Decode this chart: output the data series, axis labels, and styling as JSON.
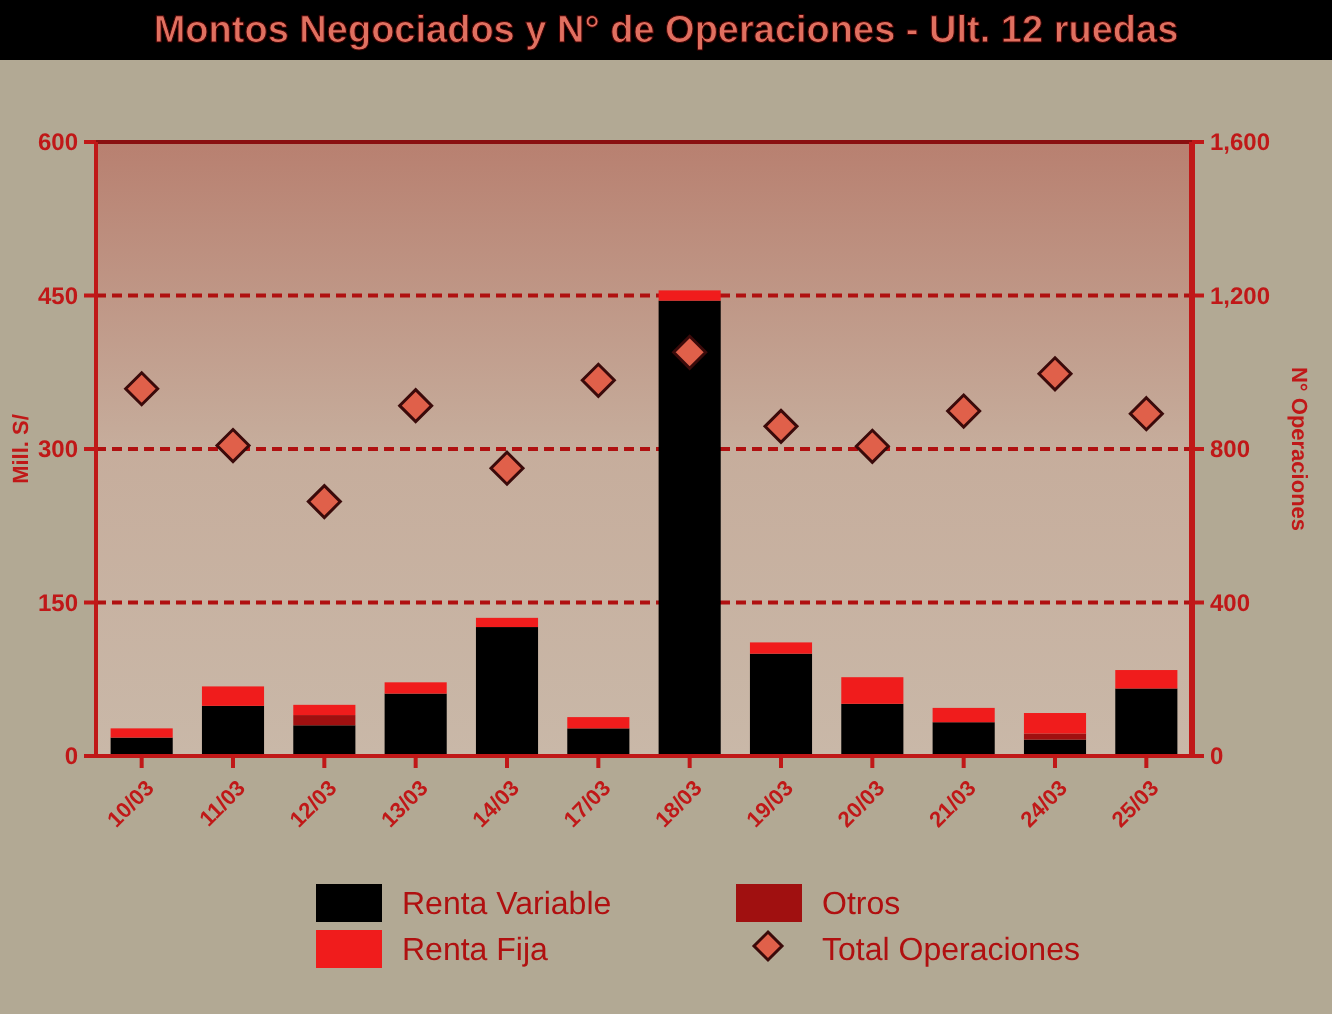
{
  "chart_data": {
    "type": "bar",
    "stacked": true,
    "title": "Montos Negociados y N° de Operaciones - Ult. 12 ruedas",
    "ylabel": "Mill. S/",
    "y2label": "N° Operaciones",
    "categories": [
      "10/03",
      "11/03",
      "12/03",
      "13/03",
      "14/03",
      "17/03",
      "18/03",
      "19/03",
      "20/03",
      "21/03",
      "24/03",
      "25/03"
    ],
    "series": [
      {
        "name": "Renta Variable",
        "color": "#000000",
        "values": [
          18,
          49,
          30,
          61,
          126,
          27,
          445,
          100,
          51,
          33,
          16,
          66
        ]
      },
      {
        "name": "Otros",
        "color": "#a01010",
        "values": [
          0,
          0,
          10,
          0,
          0,
          0,
          0,
          0,
          0,
          0,
          6,
          0
        ]
      },
      {
        "name": "Renta Fija",
        "color": "#f01c1c",
        "values": [
          9,
          19,
          10,
          11,
          9,
          11,
          10,
          11,
          26,
          14,
          20,
          18
        ]
      },
      {
        "name": "Total Operaciones",
        "type": "scatter",
        "axis": "y2",
        "marker": "diamond",
        "color": "#e0604a",
        "values": [
          957,
          809,
          663,
          913,
          750,
          979,
          1052,
          859,
          807,
          899,
          996,
          892
        ]
      }
    ],
    "ylim": [
      0,
      600
    ],
    "yticks": [
      0,
      150,
      300,
      450,
      600
    ],
    "y2lim": [
      0,
      1600
    ],
    "y2ticks": [
      0,
      400,
      800,
      {
        "value": 1200,
        "label": "1,200"
      },
      {
        "value": 1600,
        "label": "1,600"
      }
    ],
    "grid": "y",
    "legend": "bottom"
  }
}
